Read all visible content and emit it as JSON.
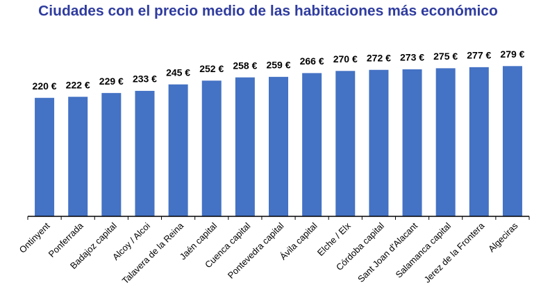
{
  "chart_data": {
    "type": "bar",
    "title": "Ciudades con el precio medio de las habitaciones más económico",
    "categories": [
      "Ontinyent",
      "Ponferrada",
      "Badajoz capital",
      "Alcoy / Alcoi",
      "Talavera de la Reina",
      "Jaén capital",
      "Cuenca capital",
      "Pontevedra capital",
      "Ávila capital",
      "Elche / Elx",
      "Córdoba capital",
      "Sant Joan d'Alacant",
      "Salamanca capital",
      "Jerez de la Frontera",
      "Algeciras"
    ],
    "values": [
      220,
      222,
      229,
      233,
      245,
      252,
      258,
      259,
      266,
      270,
      272,
      273,
      275,
      277,
      279
    ],
    "value_labels": [
      "220 €",
      "222 €",
      "229 €",
      "233 €",
      "245 €",
      "252 €",
      "258 €",
      "259 €",
      "266 €",
      "270 €",
      "272 €",
      "273 €",
      "275 €",
      "277 €",
      "279 €"
    ],
    "color": "#4472c4",
    "ylim": [
      0,
      300
    ]
  }
}
